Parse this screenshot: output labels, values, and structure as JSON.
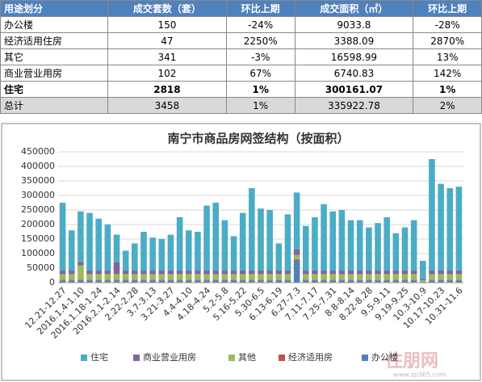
{
  "table": {
    "header": [
      "用途划分",
      "成交套数（套）",
      "环比上期",
      "成交面积（㎡）",
      "环比上期"
    ],
    "rows": [
      [
        "办公楼",
        "150",
        "-24%",
        "9033.8",
        "-28%"
      ],
      [
        "经济适用住房",
        "47",
        "2250%",
        "3388.09",
        "2870%"
      ],
      [
        "其它",
        "341",
        "-3%",
        "16598.99",
        "13%"
      ],
      [
        "商业营业用房",
        "102",
        "67%",
        "6740.83",
        "142%"
      ],
      [
        "住宅",
        "2818",
        "1%",
        "300161.07",
        "1%"
      ],
      [
        "总计",
        "3458",
        "1%",
        "335922.78",
        "2%"
      ]
    ]
  },
  "chart_data": {
    "type": "stacked_bar",
    "title": "南宁市商品房网签结构（按面积）",
    "categories": [
      "12.21-12.27",
      null,
      "2016.1.4-1.10",
      null,
      "2016.1.18-1.24",
      null,
      "2016.2.1-2.14",
      null,
      "2.22-2.28",
      null,
      "3.7-3.13",
      null,
      "3.21-3.27",
      null,
      "4.4-4.10",
      null,
      "4.18-4.24",
      null,
      "5.2-5.8",
      null,
      "5.16-5.22",
      null,
      "5.30-6.5",
      null,
      "6.13-6.19",
      null,
      "6.27-7.3",
      null,
      "7.11-7.17",
      null,
      "7.25-7.31",
      null,
      "8.8-8.14",
      null,
      "8.22-8.28",
      null,
      "9.5-9.11",
      null,
      "9.19-9.25",
      null,
      "10.3-10.9",
      null,
      "10.17-10.23",
      null,
      "10.31-11.6"
    ],
    "series": [
      {
        "name": "住宅",
        "color": "#4bacc6",
        "values": [
          233500,
          138500,
          173500,
          198500,
          178500,
          158500,
          95500,
          68500,
          93500,
          133500,
          113500,
          108500,
          123500,
          183500,
          138500,
          133500,
          223500,
          233500,
          173500,
          118500,
          198500,
          283500,
          213500,
          208500,
          93500,
          193500,
          195000,
          153500,
          183500,
          228500,
          203500,
          208500,
          173500,
          173500,
          148500,
          163500,
          183500,
          128500,
          148500,
          173500,
          62000,
          383500,
          298500,
          283500,
          288500
        ]
      },
      {
        "name": "商业营业用房",
        "color": "#8064a2",
        "values": [
          12000,
          12000,
          12000,
          12000,
          12000,
          12000,
          40000,
          12000,
          12000,
          12000,
          12000,
          12000,
          12000,
          12000,
          12000,
          12000,
          12000,
          12000,
          12000,
          12000,
          12000,
          12000,
          12000,
          12000,
          12000,
          12000,
          20000,
          12000,
          12000,
          12000,
          12000,
          12000,
          12000,
          12000,
          12000,
          12000,
          12000,
          12000,
          12000,
          12000,
          5000,
          12000,
          12000,
          12000,
          12000
        ]
      },
      {
        "name": "其他",
        "color": "#9bbb59",
        "values": [
          20000,
          20000,
          50000,
          20000,
          20000,
          20000,
          20000,
          20000,
          20000,
          20000,
          20000,
          20000,
          20000,
          20000,
          20000,
          20000,
          20000,
          20000,
          20000,
          20000,
          20000,
          20000,
          20000,
          20000,
          20000,
          20000,
          15000,
          20000,
          20000,
          20000,
          20000,
          20000,
          20000,
          20000,
          20000,
          20000,
          20000,
          20000,
          20000,
          20000,
          5000,
          20000,
          20000,
          20000,
          20000
        ]
      },
      {
        "name": "经济适用房",
        "color": "#c0504d",
        "values": [
          1500,
          1500,
          1500,
          1500,
          1500,
          1500,
          1500,
          1500,
          1500,
          1500,
          1500,
          1500,
          1500,
          1500,
          1500,
          1500,
          1500,
          1500,
          1500,
          1500,
          1500,
          1500,
          1500,
          1500,
          1500,
          1500,
          5000,
          1500,
          1500,
          1500,
          1500,
          1500,
          1500,
          1500,
          1500,
          1500,
          1500,
          1500,
          1500,
          1500,
          0,
          1500,
          1500,
          1500,
          1500
        ]
      },
      {
        "name": "办公楼",
        "color": "#4f81bd",
        "values": [
          8000,
          8000,
          8000,
          8000,
          8000,
          8000,
          8000,
          8000,
          8000,
          8000,
          8000,
          8000,
          8000,
          8000,
          8000,
          8000,
          8000,
          8000,
          8000,
          8000,
          8000,
          8000,
          8000,
          8000,
          8000,
          8000,
          75000,
          8000,
          8000,
          8000,
          8000,
          8000,
          8000,
          8000,
          8000,
          8000,
          8000,
          8000,
          8000,
          8000,
          3000,
          8000,
          8000,
          8000,
          8000
        ]
      }
    ],
    "ylim": [
      0,
      450000
    ],
    "yticks": [
      0,
      50000,
      100000,
      150000,
      200000,
      250000,
      300000,
      350000,
      400000,
      450000
    ],
    "grid": true,
    "watermark": "住朋网",
    "watermark_url": "www.zp365.com"
  }
}
